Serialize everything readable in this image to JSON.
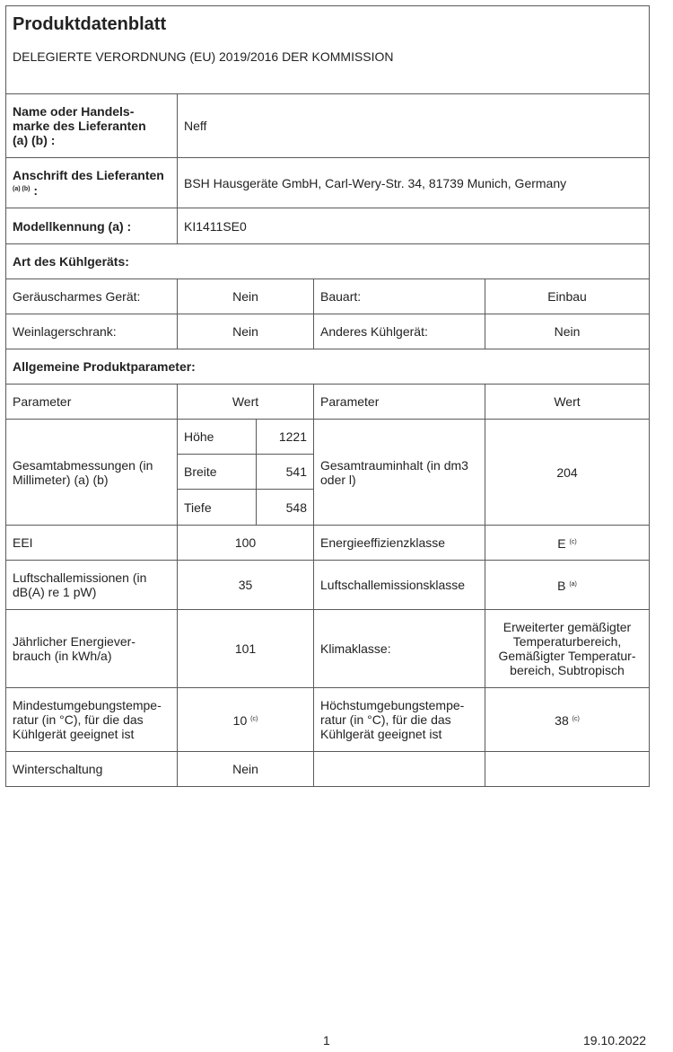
{
  "header": {
    "title": "Produktdatenblatt",
    "subtitle": "DELEGIERTE VERORDNUNG (EU) 2019/2016 DER KOMMISSION"
  },
  "supplier": {
    "name_label": "Name oder Handels-marke des Lieferanten (a) (b) :",
    "name_label_l1": "Name oder Handels-",
    "name_label_l2": "marke des Lieferanten",
    "name_label_l3": "(a) (b) :",
    "name_value": "Neff",
    "address_label": "Anschrift des Lieferanten",
    "address_label_sup": "(a) (b)",
    "address_label_colon": ":",
    "address_value": "BSH Hausgeräte GmbH, Carl-Wery-Str. 34, 81739 Munich, Germany",
    "model_label": "Modellkennung (a) :",
    "model_value": "KI1411SE0"
  },
  "type": {
    "heading": "Art des Kühlgeräts:",
    "rows": [
      {
        "l1": "Geräuscharmes Gerät:",
        "v1": "Nein",
        "l2": "Bauart:",
        "v2": "Einbau"
      },
      {
        "l1": "Weinlagerschrank:",
        "v1": "Nein",
        "l2": "Anderes Kühlgerät:",
        "v2": "Nein"
      }
    ]
  },
  "params": {
    "heading": "Allgemeine Produktparameter:",
    "col_param": "Parameter",
    "col_value": "Wert",
    "dims_label": "Gesamtabmessungen (in Millimeter) (a) (b)",
    "dims": [
      {
        "name": "Höhe",
        "value": "1221"
      },
      {
        "name": "Breite",
        "value": "541"
      },
      {
        "name": "Tiefe",
        "value": "548"
      }
    ],
    "volume_label": "Gesamtrauminhalt (in dm3 oder l)",
    "volume_value": "204",
    "eei_label": "EEI",
    "eei_value": "100",
    "eclass_label": "Energieeffizienzklasse",
    "eclass_value": "E",
    "eclass_sup": "(c)",
    "noise_label": "Luftschallemissionen (in dB(A) re 1 pW)",
    "noise_value": "35",
    "noiseclass_label": "Luftschallemissionsklasse",
    "noiseclass_value": "B",
    "noiseclass_sup": "(a)",
    "energy_label": "Jährlicher Energiever-brauch (in kWh/a)",
    "energy_value": "101",
    "climate_label": "Klimaklasse:",
    "climate_value": "Erweiterter gemäßigter Temperaturbereich, Gemäßigter Temperatur-bereich, Subtropisch",
    "mintemp_label": "Mindestumgebungstempe-ratur (in °C), für die das Kühlgerät geeignet ist",
    "mintemp_value": "10",
    "mintemp_sup": "(c)",
    "maxtemp_label": "Höchstumgebungstempe-ratur (in °C), für die das Kühlgerät geeignet ist",
    "maxtemp_value": "38",
    "maxtemp_sup": "(c)",
    "winter_label": "Winterschaltung",
    "winter_value": "Nein"
  },
  "footer": {
    "page": "1",
    "date": "19.10.2022"
  }
}
